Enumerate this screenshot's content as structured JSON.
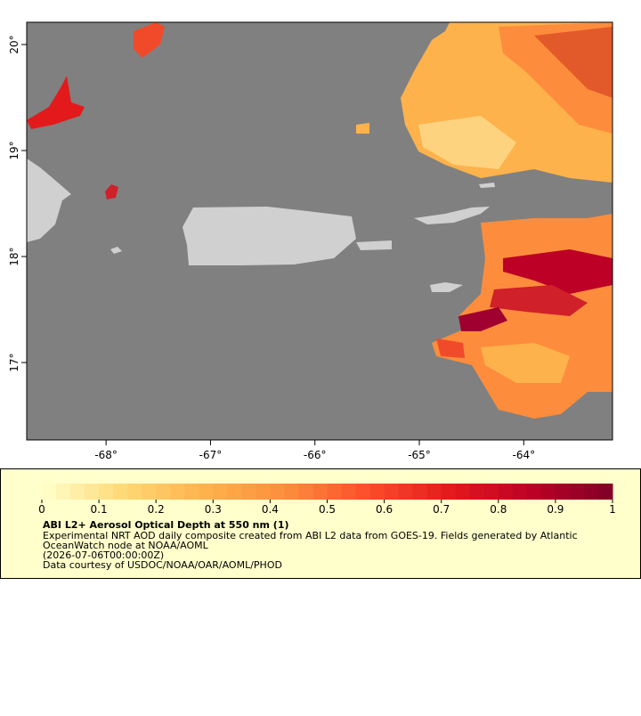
{
  "map": {
    "lon_range": [
      -68.76,
      -63.15
    ],
    "lat_range": [
      16.27,
      20.21
    ],
    "lon_ticks": [
      {
        "value": -68,
        "label": "-68°"
      },
      {
        "value": -67,
        "label": "-67°"
      },
      {
        "value": -66,
        "label": "-66°"
      },
      {
        "value": -65,
        "label": "-65°"
      },
      {
        "value": -64,
        "label": "-64°"
      }
    ],
    "lat_ticks": [
      {
        "value": 17,
        "label": "17°"
      },
      {
        "value": 18,
        "label": "18°"
      },
      {
        "value": 19,
        "label": "19°"
      },
      {
        "value": 20,
        "label": "20°"
      }
    ],
    "ocean_color": "#808080",
    "land_color": "#d0d0d0"
  },
  "colorbar": {
    "range": [
      0,
      1
    ],
    "ticks": [
      0,
      0.1,
      0.2,
      0.3,
      0.4,
      0.5,
      0.6,
      0.7,
      0.8,
      0.9,
      1
    ],
    "colors": [
      "#ffffcc",
      "#fed976",
      "#feb24c",
      "#fd8d3c",
      "#fc4e2a",
      "#e31a1c",
      "#bd0026",
      "#800026"
    ]
  },
  "legend": {
    "title": "ABI L2+ Aerosol Optical Depth at 550 nm (1)",
    "lines": [
      "Experimental NRT AOD daily composite created from ABI L2 data from GOES-19. Fields generated by Atlantic",
      "OceanWatch node at NOAA/AOML",
      "(2026-07-06T00:00:00Z)",
      "Data courtesy of USDOC/NOAA/OAR/AOML/PHOD"
    ]
  }
}
